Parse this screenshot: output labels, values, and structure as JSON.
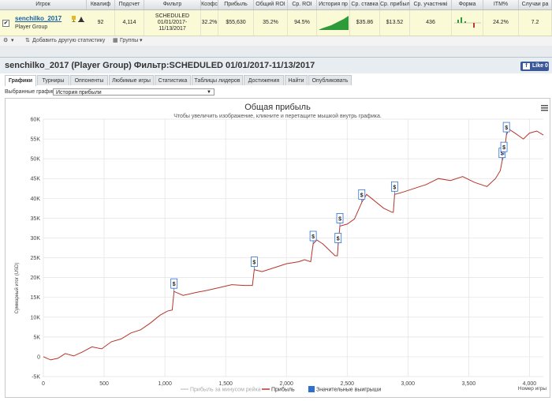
{
  "table": {
    "headers": [
      "Игрок",
      "Квалиф",
      "Подсчет",
      "Фильтр",
      "Коэфс",
      "Прибыль",
      "Общий ROI",
      "Ср. ROI",
      "История пр",
      "Ср. ставка",
      "Ср. прибыл",
      "Ср. участникі",
      "Форма",
      "ITM%",
      "Случаи ра"
    ],
    "row": {
      "checkbox": "✔",
      "player": "senchilko_2017",
      "group": "Player Group",
      "qualif": "92",
      "count": "4,114",
      "filter_l1": "SCHEDULED",
      "filter_l2": "01/01/2017-",
      "filter_l3": "11/13/2017",
      "coef": "32.2%",
      "profit": "$55,630",
      "total_roi": "35.2%",
      "avg_roi": "94.5%",
      "avg_stake": "$35.86",
      "avg_profit": "$13.52",
      "avg_entrants": "436",
      "itm": "24.2%",
      "cases": "7.2"
    }
  },
  "toolbar": {
    "add_stats": "Добавить другую статистику",
    "groups": "Группы"
  },
  "panel": {
    "title": "senchilko_2017 (Player Group) Фильтр:SCHEDULED 01/01/2017-11/13/2017",
    "like": "Like 0",
    "tabs": [
      "Графики",
      "Турниры",
      "Оппоненты",
      "Любимые игры",
      "Статистика",
      "Таблицы лидеров",
      "Достижения",
      "Найти",
      "Опубликовать"
    ],
    "select_label": "Выбранные графики:",
    "select_value": "История прибыли"
  },
  "chart_data": {
    "type": "line",
    "title": "Общая прибыль",
    "subtitle": "Чтобы увеличить изображение, кликните и перетащите мышкой внутрь графика.",
    "xlabel": "Номер игры",
    "ylabel": "Суммарный итог (USD)",
    "xlim": [
      0,
      4114
    ],
    "ylim": [
      -5000,
      60000
    ],
    "x_ticks": [
      0,
      500,
      1000,
      1500,
      2000,
      2500,
      3000,
      3500,
      4000
    ],
    "y_ticks": [
      -5000,
      0,
      5000,
      10000,
      15000,
      20000,
      25000,
      30000,
      35000,
      40000,
      45000,
      50000,
      55000,
      60000
    ],
    "y_tick_labels": [
      "-5K",
      "0",
      "5K",
      "10K",
      "15K",
      "20K",
      "25K",
      "30K",
      "35K",
      "40K",
      "45K",
      "50K",
      "55K",
      "60K"
    ],
    "x_tick_labels": [
      "0",
      "500",
      "1,000",
      "1,500",
      "2,000",
      "2,500",
      "3,000",
      "3,500",
      "4,000"
    ],
    "series": [
      {
        "name": "Прибыль за минусом рейка",
        "color": "#cfcfcf",
        "values": []
      },
      {
        "name": "Прибыль",
        "color": "#b5352a",
        "points": [
          [
            0,
            0
          ],
          [
            60,
            -800
          ],
          [
            120,
            -400
          ],
          [
            180,
            800
          ],
          [
            250,
            200
          ],
          [
            320,
            1200
          ],
          [
            400,
            2500
          ],
          [
            480,
            2000
          ],
          [
            560,
            3800
          ],
          [
            640,
            4500
          ],
          [
            720,
            6000
          ],
          [
            800,
            6800
          ],
          [
            880,
            8500
          ],
          [
            960,
            10500
          ],
          [
            1020,
            11500
          ],
          [
            1060,
            11800
          ],
          [
            1075,
            16500
          ],
          [
            1150,
            15500
          ],
          [
            1250,
            16200
          ],
          [
            1350,
            16800
          ],
          [
            1450,
            17500
          ],
          [
            1550,
            18200
          ],
          [
            1650,
            18000
          ],
          [
            1720,
            18000
          ],
          [
            1735,
            22000
          ],
          [
            1800,
            21500
          ],
          [
            1900,
            22500
          ],
          [
            2000,
            23500
          ],
          [
            2100,
            24000
          ],
          [
            2150,
            24500
          ],
          [
            2200,
            24000
          ],
          [
            2220,
            28500
          ],
          [
            2250,
            29500
          ],
          [
            2300,
            28500
          ],
          [
            2350,
            27000
          ],
          [
            2400,
            25500
          ],
          [
            2420,
            25500
          ],
          [
            2425,
            28000
          ],
          [
            2440,
            33000
          ],
          [
            2500,
            33500
          ],
          [
            2560,
            34800
          ],
          [
            2620,
            39000
          ],
          [
            2660,
            41000
          ],
          [
            2720,
            39500
          ],
          [
            2800,
            37500
          ],
          [
            2870,
            36500
          ],
          [
            2880,
            36500
          ],
          [
            2890,
            41000
          ],
          [
            2950,
            41500
          ],
          [
            3050,
            42500
          ],
          [
            3150,
            43500
          ],
          [
            3250,
            45000
          ],
          [
            3350,
            44500
          ],
          [
            3450,
            45500
          ],
          [
            3550,
            44000
          ],
          [
            3650,
            43000
          ],
          [
            3720,
            45000
          ],
          [
            3760,
            47000
          ],
          [
            3775,
            49500
          ],
          [
            3790,
            51000
          ],
          [
            3810,
            56000
          ],
          [
            3830,
            57500
          ],
          [
            3880,
            56500
          ],
          [
            3950,
            55000
          ],
          [
            4000,
            56500
          ],
          [
            4060,
            57000
          ],
          [
            4114,
            56000
          ]
        ]
      }
    ],
    "big_wins": [
      {
        "x": 1075,
        "y": 16500
      },
      {
        "x": 1735,
        "y": 22000
      },
      {
        "x": 2220,
        "y": 28500
      },
      {
        "x": 2425,
        "y": 28000
      },
      {
        "x": 2440,
        "y": 33000
      },
      {
        "x": 2620,
        "y": 39000
      },
      {
        "x": 2890,
        "y": 41000
      },
      {
        "x": 3775,
        "y": 49500
      },
      {
        "x": 3790,
        "y": 51000
      },
      {
        "x": 3810,
        "y": 56000
      }
    ],
    "big_win_label": "Значительные выигрыши",
    "big_win_marker": "$",
    "legend_position": "bottom",
    "grid": true
  }
}
